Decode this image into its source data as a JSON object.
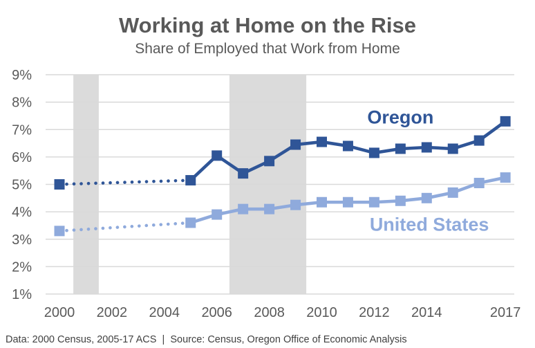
{
  "chart_data": {
    "type": "line",
    "title": "Working at Home on the Rise",
    "subtitle": "Share of Employed that Work from Home",
    "xlabel": "",
    "ylabel": "",
    "xlim": [
      2000,
      2017
    ],
    "ylim": [
      1,
      9
    ],
    "grid": true,
    "legend": "inline-annotations",
    "x": [
      2000,
      2005,
      2006,
      2007,
      2008,
      2009,
      2010,
      2011,
      2012,
      2013,
      2014,
      2015,
      2016,
      2017
    ],
    "series": [
      {
        "name": "Oregon",
        "color": "#2F5597",
        "dotted_through": 2005,
        "values": [
          5.0,
          5.15,
          6.05,
          5.4,
          5.85,
          6.45,
          6.55,
          6.4,
          6.15,
          6.3,
          6.35,
          6.3,
          6.6,
          7.3
        ]
      },
      {
        "name": "United States",
        "color": "#8FAADC",
        "dotted_through": 2005,
        "values": [
          3.3,
          3.6,
          3.9,
          4.1,
          4.1,
          4.25,
          4.35,
          4.35,
          4.35,
          4.4,
          4.5,
          4.7,
          5.05,
          5.25
        ]
      }
    ],
    "x_tick_values": [
      2000,
      2002,
      2004,
      2006,
      2008,
      2010,
      2012,
      2014,
      2017
    ],
    "y_tick_values": [
      1,
      2,
      3,
      4,
      5,
      6,
      7,
      8,
      9
    ],
    "y_tick_labels": [
      "1%",
      "2%",
      "3%",
      "4%",
      "5%",
      "6%",
      "7%",
      "8%",
      "9%"
    ],
    "recession_bands": [
      [
        2000.53,
        2001.5
      ],
      [
        2006.48,
        2009.41
      ]
    ],
    "annotations": [
      {
        "text": "Oregon",
        "x": 2013.0,
        "y": 7.45,
        "color": "#2F5597"
      },
      {
        "text": "United States",
        "x": 2014.1,
        "y": 3.53,
        "color": "#8FAADC"
      }
    ]
  },
  "footer": {
    "text": "Data: 2000 Census, 2005-17 ACS  |  Source: Census, Oregon Office of Economic Analysis"
  },
  "colors": {
    "title_text": "#595959",
    "subtitle_text": "#595959",
    "axis_text": "#595959",
    "footer_text": "#404040",
    "gridline": "#D9D9D9",
    "recession_band": "#DBDBDB",
    "background": "#FFFFFF"
  }
}
